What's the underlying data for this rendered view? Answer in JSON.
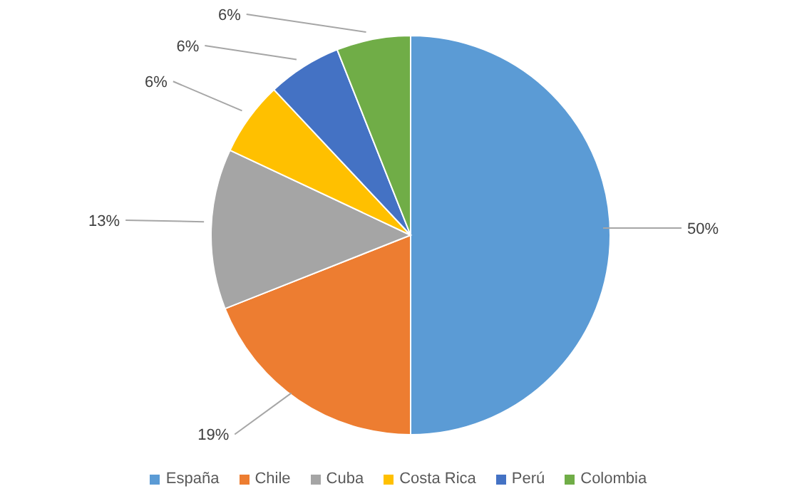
{
  "chart_data": {
    "type": "pie",
    "categories": [
      "España",
      "Chile",
      "Cuba",
      "Costa Rica",
      "Perú",
      "Colombia"
    ],
    "values": [
      50,
      19,
      13,
      6,
      6,
      6
    ],
    "value_labels": [
      "50%",
      "19%",
      "13%",
      "6%",
      "6%",
      "6%"
    ],
    "colors": [
      "#5b9bd5",
      "#ed7d31",
      "#a5a5a5",
      "#ffc000",
      "#4472c4",
      "#70ad47"
    ],
    "legend": "bottom"
  }
}
